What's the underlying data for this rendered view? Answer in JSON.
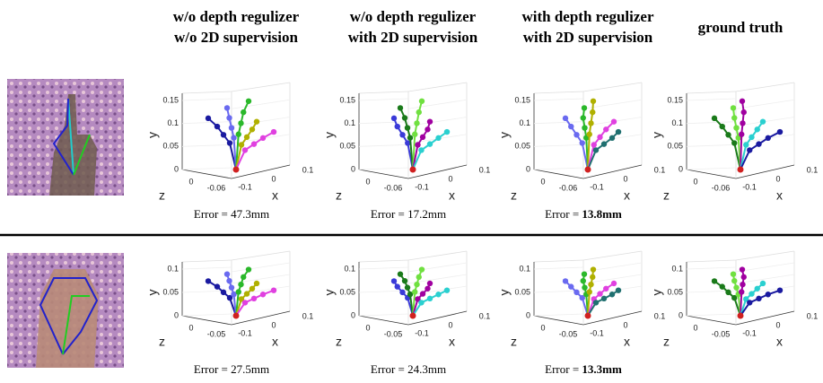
{
  "header": {
    "columns": [
      {
        "lines": [
          "w/o depth regulizer",
          "w/o 2D supervision"
        ]
      },
      {
        "lines": [
          "w/o depth regulizer",
          "with 2D supervision"
        ]
      },
      {
        "lines": [
          "with depth regulizer",
          "with 2D supervision"
        ]
      },
      {
        "lines": [
          "ground truth"
        ]
      }
    ]
  },
  "axis_labels": {
    "x": "x",
    "y": "y",
    "z": "z"
  },
  "rows": [
    {
      "y_ticks": [
        "0",
        "0.05",
        "0.1",
        "0.15"
      ],
      "z_ticks": [
        "0",
        "-0.06"
      ],
      "x_ticks": [
        "-0.1",
        "0",
        "0.1"
      ],
      "errors": [
        {
          "prefix": "Error = ",
          "value": "47.3mm"
        },
        {
          "prefix": "Error = ",
          "value": "17.2mm"
        },
        {
          "prefix": "Error = ",
          "value": "13.8mm",
          "bold": true
        }
      ]
    },
    {
      "y_ticks": [
        "0",
        "0.05",
        "0.1"
      ],
      "z_ticks": [
        "0",
        "-0.05"
      ],
      "x_ticks": [
        "-0.1",
        "0",
        "0.1"
      ],
      "errors": [
        {
          "prefix": "Error = ",
          "value": "27.5mm"
        },
        {
          "prefix": "Error = ",
          "value": "24.3mm"
        },
        {
          "prefix": "Error = ",
          "value": "13.3mm",
          "bold": true
        }
      ]
    }
  ]
}
